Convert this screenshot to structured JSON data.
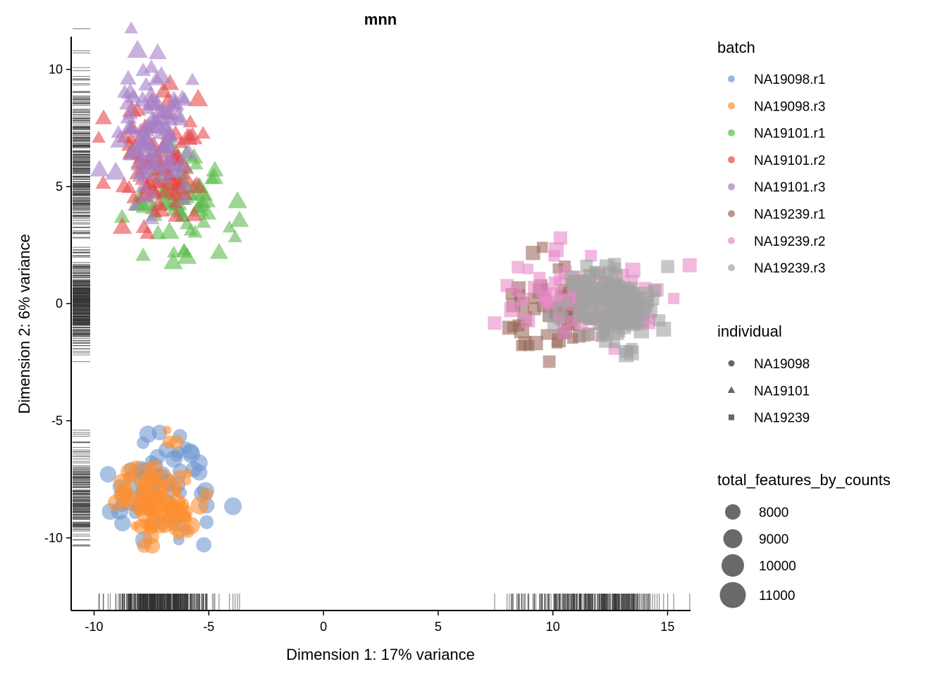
{
  "chart_data": {
    "type": "scatter",
    "title": "mnn",
    "xlabel": "Dimension 1: 17% variance",
    "ylabel": "Dimension 2: 6% variance",
    "xlim": [
      -11,
      16
    ],
    "ylim": [
      -13.1,
      11.4
    ],
    "x_ticks": [
      -10,
      -5,
      0,
      5,
      10,
      15
    ],
    "x_tick_labels": [
      "-10",
      "-5",
      "0",
      "5",
      "10",
      "15"
    ],
    "y_ticks": [
      -10,
      -5,
      0,
      5,
      10
    ],
    "y_tick_labels": [
      "-10",
      "-5",
      "0",
      "5",
      "10"
    ],
    "grid": false,
    "rug": true,
    "legend": {
      "placement": "right",
      "batch": {
        "title": "batch",
        "entries": [
          {
            "label": "NA19098.r1",
            "color": "#6F97D0"
          },
          {
            "label": "NA19098.r3",
            "color": "#FF8F2E"
          },
          {
            "label": "NA19101.r1",
            "color": "#5DBA4C"
          },
          {
            "label": "NA19101.r2",
            "color": "#E8474A"
          },
          {
            "label": "NA19101.r3",
            "color": "#A57FC7"
          },
          {
            "label": "NA19239.r1",
            "color": "#9B6B5E"
          },
          {
            "label": "NA19239.r2",
            "color": "#E88BC8"
          },
          {
            "label": "NA19239.r3",
            "color": "#A2A2A2"
          }
        ]
      },
      "individual": {
        "title": "individual",
        "entries": [
          {
            "label": "NA19098",
            "shape": "circle"
          },
          {
            "label": "NA19101",
            "shape": "triangle"
          },
          {
            "label": "NA19239",
            "shape": "square"
          }
        ]
      },
      "size": {
        "title": "total_features_by_counts",
        "entries": [
          {
            "label": "8000",
            "value": 8000
          },
          {
            "label": "9000",
            "value": 9000
          },
          {
            "label": "10000",
            "value": 10000
          },
          {
            "label": "11000",
            "value": 11000
          }
        ]
      }
    },
    "clusters": [
      {
        "batch": "NA19098.r1",
        "shape": "circle",
        "cx": -7.0,
        "cy": -7.7,
        "sx": 1.1,
        "sy": 1.3,
        "n": 65,
        "size_range": [
          8500,
          11000
        ]
      },
      {
        "batch": "NA19098.r3",
        "shape": "circle",
        "cx": -7.2,
        "cy": -8.3,
        "sx": 0.9,
        "sy": 1.0,
        "n": 90,
        "size_range": [
          7500,
          11000
        ]
      },
      {
        "batch": "NA19101.r1",
        "shape": "triangle",
        "cx": -6.3,
        "cy": 4.6,
        "sx": 1.0,
        "sy": 1.1,
        "n": 75,
        "size_range": [
          8500,
          10500
        ]
      },
      {
        "batch": "NA19101.r2",
        "shape": "triangle",
        "cx": -7.0,
        "cy": 6.0,
        "sx": 0.9,
        "sy": 1.3,
        "n": 85,
        "size_range": [
          8500,
          10500
        ]
      },
      {
        "batch": "NA19101.r3",
        "shape": "triangle",
        "cx": -7.5,
        "cy": 7.2,
        "sx": 0.9,
        "sy": 1.3,
        "n": 95,
        "size_range": [
          8500,
          10800
        ]
      },
      {
        "batch": "NA19239.r1",
        "shape": "square",
        "cx": 10.0,
        "cy": -0.3,
        "sx": 1.1,
        "sy": 0.9,
        "n": 65,
        "size_range": [
          8500,
          10500
        ]
      },
      {
        "batch": "NA19239.r2",
        "shape": "square",
        "cx": 11.3,
        "cy": 0.2,
        "sx": 1.5,
        "sy": 0.9,
        "n": 70,
        "size_range": [
          8500,
          10500
        ]
      },
      {
        "batch": "NA19239.r3",
        "shape": "square",
        "cx": 12.5,
        "cy": 0.0,
        "sx": 1.0,
        "sy": 0.8,
        "n": 160,
        "size_range": [
          8500,
          10500
        ]
      }
    ]
  }
}
